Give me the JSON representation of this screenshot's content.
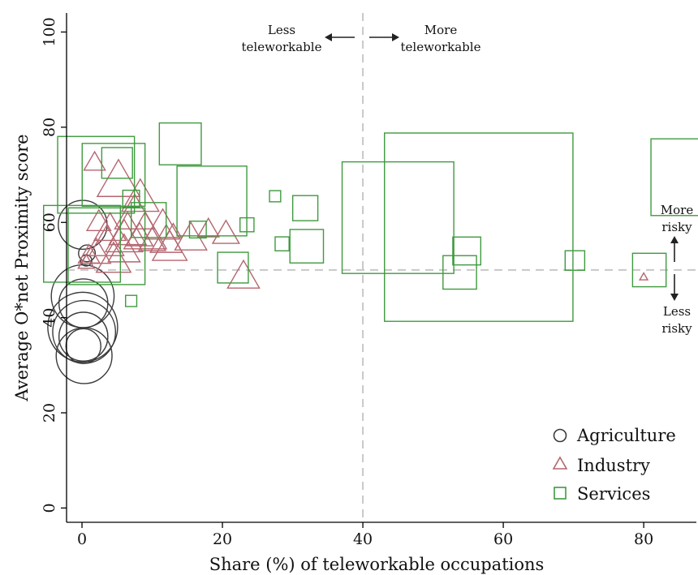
{
  "chart_data": {
    "type": "scatter",
    "xlabel": "Share (%) of teleworkable occupations",
    "ylabel": "Average O*net Proximity score",
    "xlim": [
      -2.2,
      87.5
    ],
    "ylim": [
      -3,
      104
    ],
    "xticks": [
      0,
      20,
      40,
      60,
      80
    ],
    "yticks": [
      0,
      20,
      40,
      60,
      80,
      100
    ],
    "grid": false,
    "legend_position": "bottom-right",
    "colors": {
      "Agriculture": "#3a3a3a",
      "Industry": "#b5666f",
      "Services": "#3f9a3f",
      "reference": "#c8c8c8"
    },
    "reference_lines": {
      "x": 40,
      "y": 50
    },
    "annotations": {
      "less_tele_1": "Less",
      "less_tele_2": "teleworkable",
      "more_tele_1": "More",
      "more_tele_2": "teleworkable",
      "more_risky_1": "More",
      "more_risky_2": "risky",
      "less_risky_1": "Less",
      "less_risky_2": "risky"
    },
    "series": [
      {
        "name": "Agriculture",
        "marker": "circle",
        "points": [
          {
            "x": 0.1,
            "y": 59.5,
            "s": 3.5
          },
          {
            "x": 0.7,
            "y": 53.5,
            "s": 1.2
          },
          {
            "x": 0.6,
            "y": 52.0,
            "s": 0.8
          },
          {
            "x": 0.1,
            "y": 44.5,
            "s": 4.5
          },
          {
            "x": 0.2,
            "y": 43.0,
            "s": 3.5
          },
          {
            "x": 0.1,
            "y": 38.0,
            "s": 5.0
          },
          {
            "x": 0.3,
            "y": 37.0,
            "s": 4.5
          },
          {
            "x": 0.2,
            "y": 36.0,
            "s": 3.5
          },
          {
            "x": 0.2,
            "y": 34.0,
            "s": 2.5
          },
          {
            "x": 0.3,
            "y": 32.0,
            "s": 4.0
          }
        ]
      },
      {
        "name": "Industry",
        "marker": "triangle",
        "points": [
          {
            "x": 1.8,
            "y": 72.5,
            "s": 1.6
          },
          {
            "x": 5.2,
            "y": 68.5,
            "s": 3.2
          },
          {
            "x": 8.3,
            "y": 65.0,
            "s": 2.8
          },
          {
            "x": 7.5,
            "y": 61.5,
            "s": 3.0
          },
          {
            "x": 2.4,
            "y": 60.0,
            "s": 1.8
          },
          {
            "x": 11.5,
            "y": 59.0,
            "s": 2.6
          },
          {
            "x": 4.0,
            "y": 58.5,
            "s": 2.4
          },
          {
            "x": 6.5,
            "y": 58.0,
            "s": 2.8
          },
          {
            "x": 9.0,
            "y": 57.5,
            "s": 3.2
          },
          {
            "x": 13.0,
            "y": 58.0,
            "s": 1.2
          },
          {
            "x": 6.0,
            "y": 56.5,
            "s": 2.8
          },
          {
            "x": 8.2,
            "y": 57.0,
            "s": 2.0
          },
          {
            "x": 12.0,
            "y": 56.0,
            "s": 2.4
          },
          {
            "x": 15.5,
            "y": 56.5,
            "s": 2.4
          },
          {
            "x": 18.0,
            "y": 58.5,
            "s": 1.6
          },
          {
            "x": 20.5,
            "y": 57.5,
            "s": 2.0
          },
          {
            "x": 3.5,
            "y": 55.5,
            "s": 2.6
          },
          {
            "x": 10.0,
            "y": 56.0,
            "s": 2.0
          },
          {
            "x": 12.5,
            "y": 54.5,
            "s": 2.6
          },
          {
            "x": 6.0,
            "y": 54.0,
            "s": 2.4
          },
          {
            "x": 2.0,
            "y": 53.5,
            "s": 2.2
          },
          {
            "x": 1.0,
            "y": 53.0,
            "s": 1.6
          },
          {
            "x": 4.5,
            "y": 52.0,
            "s": 2.6
          },
          {
            "x": 0.6,
            "y": 51.5,
            "s": 1.2
          },
          {
            "x": 23.0,
            "y": 48.5,
            "s": 2.4
          },
          {
            "x": 80.0,
            "y": 48.5,
            "s": 0.6
          }
        ]
      },
      {
        "name": "Services",
        "marker": "square",
        "points": [
          {
            "x": 2.0,
            "y": 70.0,
            "s": 5.5
          },
          {
            "x": 5.0,
            "y": 72.5,
            "s": 2.2
          },
          {
            "x": 4.5,
            "y": 70.0,
            "s": 4.5
          },
          {
            "x": 14.0,
            "y": 76.5,
            "s": 3.0
          },
          {
            "x": 7.0,
            "y": 65.0,
            "s": 1.2
          },
          {
            "x": 18.5,
            "y": 64.5,
            "s": 5.0
          },
          {
            "x": 27.5,
            "y": 65.5,
            "s": 0.8
          },
          {
            "x": 31.8,
            "y": 63.0,
            "s": 1.8
          },
          {
            "x": 0.0,
            "y": 55.5,
            "s": 5.5
          },
          {
            "x": 3.5,
            "y": 55.0,
            "s": 5.5
          },
          {
            "x": 9.5,
            "y": 60.5,
            "s": 2.5
          },
          {
            "x": 16.5,
            "y": 58.5,
            "s": 1.2
          },
          {
            "x": 23.5,
            "y": 59.5,
            "s": 1.0
          },
          {
            "x": 28.5,
            "y": 55.5,
            "s": 1.0
          },
          {
            "x": 32.0,
            "y": 55.0,
            "s": 2.4
          },
          {
            "x": 21.5,
            "y": 50.5,
            "s": 2.2
          },
          {
            "x": 7.0,
            "y": 43.5,
            "s": 0.8
          },
          {
            "x": 45.0,
            "y": 61.0,
            "s": 8.0
          },
          {
            "x": 56.5,
            "y": 59.0,
            "s": 13.5
          },
          {
            "x": 54.8,
            "y": 54.0,
            "s": 2.0
          },
          {
            "x": 53.8,
            "y": 49.5,
            "s": 2.4
          },
          {
            "x": 70.2,
            "y": 52.0,
            "s": 1.4
          },
          {
            "x": 80.8,
            "y": 50.0,
            "s": 2.4
          },
          {
            "x": 86.5,
            "y": 69.5,
            "s": 5.5
          }
        ]
      }
    ]
  }
}
